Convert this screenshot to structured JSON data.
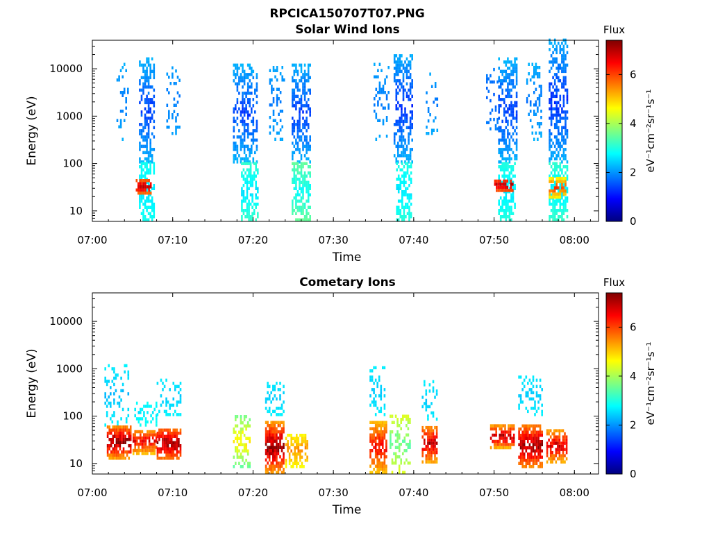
{
  "figure_title": "RPCICA150707T07.PNG",
  "chart_data": [
    {
      "type": "heatmap",
      "title": "Solar Wind Ions",
      "xlabel": "Time",
      "ylabel": "Energy (eV)",
      "x_ticks": [
        "07:00",
        "07:10",
        "07:20",
        "07:30",
        "07:40",
        "07:50",
        "08:00"
      ],
      "xlim_minutes": [
        0,
        63
      ],
      "y_scale": "log",
      "ylim": [
        6,
        40000
      ],
      "y_ticks": [
        10,
        100,
        1000,
        10000
      ],
      "y_tick_labels": [
        "10",
        "100",
        "1000",
        "10000"
      ],
      "colorbar": {
        "label": "Flux",
        "unit": "eV⁻¹cm⁻²sr⁻¹s⁻¹",
        "range": [
          0,
          7.4
        ],
        "ticks": [
          "0",
          "2",
          "4",
          "6"
        ],
        "colormap": "jet"
      },
      "bursts": [
        {
          "t_start": 3.0,
          "t_end": 4.5,
          "e_min": 300,
          "e_max": 12000,
          "density": 0.25,
          "v_hi": 1.8,
          "v_lo": 2.4
        },
        {
          "t_start": 5.8,
          "t_end": 7.6,
          "e_min": 100,
          "e_max": 15000,
          "density": 0.6,
          "v_hi": 1.4,
          "v_lo": 2.6
        },
        {
          "t_start": 5.8,
          "t_end": 7.6,
          "e_min": 6,
          "e_max": 100,
          "density": 0.7,
          "v_hi": 2.6,
          "v_lo": 3.0
        },
        {
          "t_start": 5.4,
          "t_end": 7.2,
          "e_min": 22,
          "e_max": 42,
          "density": 0.95,
          "v_hi": 7.0,
          "v_lo": 5.2
        },
        {
          "t_start": 9.2,
          "t_end": 10.8,
          "e_min": 400,
          "e_max": 10000,
          "density": 0.25,
          "v_hi": 1.8,
          "v_lo": 2.2
        },
        {
          "t_start": 17.5,
          "t_end": 20.5,
          "e_min": 100,
          "e_max": 12000,
          "density": 0.55,
          "v_hi": 1.4,
          "v_lo": 2.6
        },
        {
          "t_start": 18.5,
          "t_end": 20.5,
          "e_min": 6,
          "e_max": 100,
          "density": 0.65,
          "v_hi": 2.6,
          "v_lo": 3.4
        },
        {
          "t_start": 22.0,
          "t_end": 23.8,
          "e_min": 300,
          "e_max": 10000,
          "density": 0.3,
          "v_hi": 1.8,
          "v_lo": 2.3
        },
        {
          "t_start": 24.8,
          "t_end": 27.0,
          "e_min": 100,
          "e_max": 12000,
          "density": 0.6,
          "v_hi": 1.4,
          "v_lo": 2.6
        },
        {
          "t_start": 24.8,
          "t_end": 27.0,
          "e_min": 6,
          "e_max": 100,
          "density": 0.7,
          "v_hi": 2.8,
          "v_lo": 3.8
        },
        {
          "t_start": 35.0,
          "t_end": 36.8,
          "e_min": 300,
          "e_max": 12000,
          "density": 0.25,
          "v_hi": 1.8,
          "v_lo": 2.3
        },
        {
          "t_start": 37.5,
          "t_end": 39.7,
          "e_min": 100,
          "e_max": 20000,
          "density": 0.6,
          "v_hi": 1.3,
          "v_lo": 2.6
        },
        {
          "t_start": 37.8,
          "t_end": 39.7,
          "e_min": 6,
          "e_max": 100,
          "density": 0.6,
          "v_hi": 2.6,
          "v_lo": 3.2
        },
        {
          "t_start": 41.5,
          "t_end": 43.0,
          "e_min": 400,
          "e_max": 8000,
          "density": 0.25,
          "v_hi": 1.8,
          "v_lo": 2.3
        },
        {
          "t_start": 49.0,
          "t_end": 50.5,
          "e_min": 500,
          "e_max": 10000,
          "density": 0.15,
          "v_hi": 1.6,
          "v_lo": 2.0
        },
        {
          "t_start": 50.5,
          "t_end": 52.8,
          "e_min": 100,
          "e_max": 15000,
          "density": 0.6,
          "v_hi": 1.4,
          "v_lo": 2.6
        },
        {
          "t_start": 50.5,
          "t_end": 52.5,
          "e_min": 6,
          "e_max": 100,
          "density": 0.7,
          "v_hi": 2.6,
          "v_lo": 3.2
        },
        {
          "t_start": 50.0,
          "t_end": 52.3,
          "e_min": 25,
          "e_max": 42,
          "density": 0.95,
          "v_hi": 7.0,
          "v_lo": 5.5
        },
        {
          "t_start": 54.0,
          "t_end": 55.8,
          "e_min": 300,
          "e_max": 12000,
          "density": 0.3,
          "v_hi": 1.8,
          "v_lo": 2.4
        },
        {
          "t_start": 56.8,
          "t_end": 59.0,
          "e_min": 100,
          "e_max": 40000,
          "density": 0.55,
          "v_hi": 1.3,
          "v_lo": 2.6
        },
        {
          "t_start": 56.8,
          "t_end": 59.0,
          "e_min": 6,
          "e_max": 100,
          "density": 0.7,
          "v_hi": 2.6,
          "v_lo": 3.4
        },
        {
          "t_start": 56.8,
          "t_end": 58.8,
          "e_min": 18,
          "e_max": 45,
          "density": 0.85,
          "v_hi": 6.0,
          "v_lo": 4.2
        }
      ]
    },
    {
      "type": "heatmap",
      "title": "Cometary Ions",
      "xlabel": "Time",
      "ylabel": "Energy (eV)",
      "x_ticks": [
        "07:00",
        "07:10",
        "07:20",
        "07:30",
        "07:40",
        "07:50",
        "08:00"
      ],
      "xlim_minutes": [
        0,
        63
      ],
      "y_scale": "log",
      "ylim": [
        6,
        40000
      ],
      "y_ticks": [
        10,
        100,
        1000,
        10000
      ],
      "y_tick_labels": [
        "10",
        "100",
        "1000",
        "10000"
      ],
      "colorbar": {
        "label": "Flux",
        "unit": "eV⁻¹cm⁻²sr⁻¹s⁻¹",
        "range": [
          0,
          7.4
        ],
        "ticks": [
          "0",
          "2",
          "4",
          "6"
        ],
        "colormap": "jet"
      },
      "bursts": [
        {
          "t_start": 1.5,
          "t_end": 4.5,
          "e_min": 60,
          "e_max": 1200,
          "density": 0.3,
          "v_hi": 2.3,
          "v_lo": 2.9
        },
        {
          "t_start": 1.8,
          "t_end": 4.8,
          "e_min": 12,
          "e_max": 60,
          "density": 0.9,
          "v_hi": 7.2,
          "v_lo": 4.5
        },
        {
          "t_start": 5.0,
          "t_end": 8.0,
          "e_min": 60,
          "e_max": 200,
          "density": 0.35,
          "v_hi": 2.6,
          "v_lo": 3.0
        },
        {
          "t_start": 5.0,
          "t_end": 8.0,
          "e_min": 15,
          "e_max": 50,
          "density": 0.9,
          "v_hi": 6.5,
          "v_lo": 4.5
        },
        {
          "t_start": 8.0,
          "t_end": 11.0,
          "e_min": 100,
          "e_max": 600,
          "density": 0.3,
          "v_hi": 2.4,
          "v_lo": 2.8
        },
        {
          "t_start": 8.0,
          "t_end": 11.0,
          "e_min": 12,
          "e_max": 50,
          "density": 0.9,
          "v_hi": 7.2,
          "v_lo": 5.0
        },
        {
          "t_start": 17.5,
          "t_end": 19.5,
          "e_min": 8,
          "e_max": 100,
          "density": 0.5,
          "v_hi": 4.8,
          "v_lo": 3.0
        },
        {
          "t_start": 21.5,
          "t_end": 23.8,
          "e_min": 100,
          "e_max": 500,
          "density": 0.4,
          "v_hi": 2.4,
          "v_lo": 2.8
        },
        {
          "t_start": 21.5,
          "t_end": 23.8,
          "e_min": 6,
          "e_max": 70,
          "density": 0.9,
          "v_hi": 7.3,
          "v_lo": 4.5
        },
        {
          "t_start": 24.0,
          "t_end": 26.8,
          "e_min": 8,
          "e_max": 40,
          "density": 0.7,
          "v_hi": 5.5,
          "v_lo": 4.2
        },
        {
          "t_start": 34.5,
          "t_end": 36.5,
          "e_min": 100,
          "e_max": 1000,
          "density": 0.3,
          "v_hi": 2.4,
          "v_lo": 2.8
        },
        {
          "t_start": 34.5,
          "t_end": 36.5,
          "e_min": 6,
          "e_max": 70,
          "density": 0.85,
          "v_hi": 6.5,
          "v_lo": 4.5
        },
        {
          "t_start": 37.0,
          "t_end": 39.5,
          "e_min": 6,
          "e_max": 100,
          "density": 0.4,
          "v_hi": 3.5,
          "v_lo": 4.8
        },
        {
          "t_start": 41.0,
          "t_end": 42.8,
          "e_min": 80,
          "e_max": 500,
          "density": 0.3,
          "v_hi": 2.4,
          "v_lo": 2.8
        },
        {
          "t_start": 41.0,
          "t_end": 42.8,
          "e_min": 10,
          "e_max": 60,
          "density": 0.85,
          "v_hi": 7.0,
          "v_lo": 4.5
        },
        {
          "t_start": 49.5,
          "t_end": 52.5,
          "e_min": 20,
          "e_max": 60,
          "density": 0.9,
          "v_hi": 7.0,
          "v_lo": 4.5
        },
        {
          "t_start": 53.0,
          "t_end": 56.0,
          "e_min": 100,
          "e_max": 700,
          "density": 0.35,
          "v_hi": 2.4,
          "v_lo": 2.8
        },
        {
          "t_start": 53.0,
          "t_end": 56.0,
          "e_min": 8,
          "e_max": 60,
          "density": 0.9,
          "v_hi": 7.2,
          "v_lo": 4.8
        },
        {
          "t_start": 56.5,
          "t_end": 59.0,
          "e_min": 10,
          "e_max": 50,
          "density": 0.85,
          "v_hi": 6.8,
          "v_lo": 4.5
        }
      ]
    }
  ]
}
